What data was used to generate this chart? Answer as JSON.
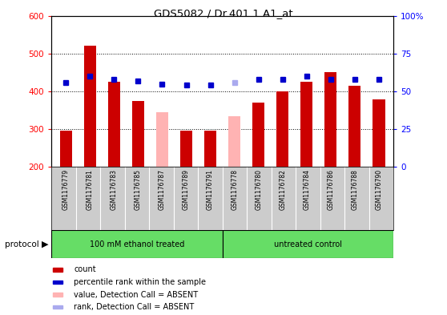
{
  "title": "GDS5082 / Dr.401.1.A1_at",
  "samples": [
    "GSM1176779",
    "GSM1176781",
    "GSM1176783",
    "GSM1176785",
    "GSM1176787",
    "GSM1176789",
    "GSM1176791",
    "GSM1176778",
    "GSM1176780",
    "GSM1176782",
    "GSM1176784",
    "GSM1176786",
    "GSM1176788",
    "GSM1176790"
  ],
  "count_values": [
    295,
    520,
    425,
    375,
    345,
    295,
    295,
    335,
    370,
    400,
    425,
    450,
    415,
    378
  ],
  "absent_bars": [
    false,
    false,
    false,
    false,
    true,
    false,
    false,
    true,
    false,
    false,
    false,
    false,
    false,
    false
  ],
  "percentile_values": [
    56,
    60,
    58,
    57,
    55,
    54,
    54,
    56,
    58,
    58,
    60,
    58,
    58,
    58
  ],
  "absent_ranks": [
    false,
    false,
    false,
    false,
    false,
    false,
    false,
    true,
    false,
    false,
    false,
    false,
    false,
    false
  ],
  "group1_label": "100 mM ethanol treated",
  "group2_label": "untreated control",
  "group1_count": 7,
  "group2_count": 7,
  "ylim_left": [
    200,
    600
  ],
  "ylim_right": [
    0,
    100
  ],
  "yticks_left": [
    200,
    300,
    400,
    500,
    600
  ],
  "yticks_right": [
    0,
    25,
    50,
    75,
    100
  ],
  "bar_color_present": "#cc0000",
  "bar_color_absent": "#ffb3b3",
  "rank_color_present": "#0000cc",
  "rank_color_absent": "#aaaaee",
  "group_bg_color": "#66dd66",
  "sample_bg_color": "#cccccc",
  "protocol_label": "protocol",
  "legend_items": [
    {
      "label": "count",
      "color": "#cc0000"
    },
    {
      "label": "percentile rank within the sample",
      "color": "#0000cc"
    },
    {
      "label": "value, Detection Call = ABSENT",
      "color": "#ffb3b3"
    },
    {
      "label": "rank, Detection Call = ABSENT",
      "color": "#aaaaee"
    }
  ]
}
